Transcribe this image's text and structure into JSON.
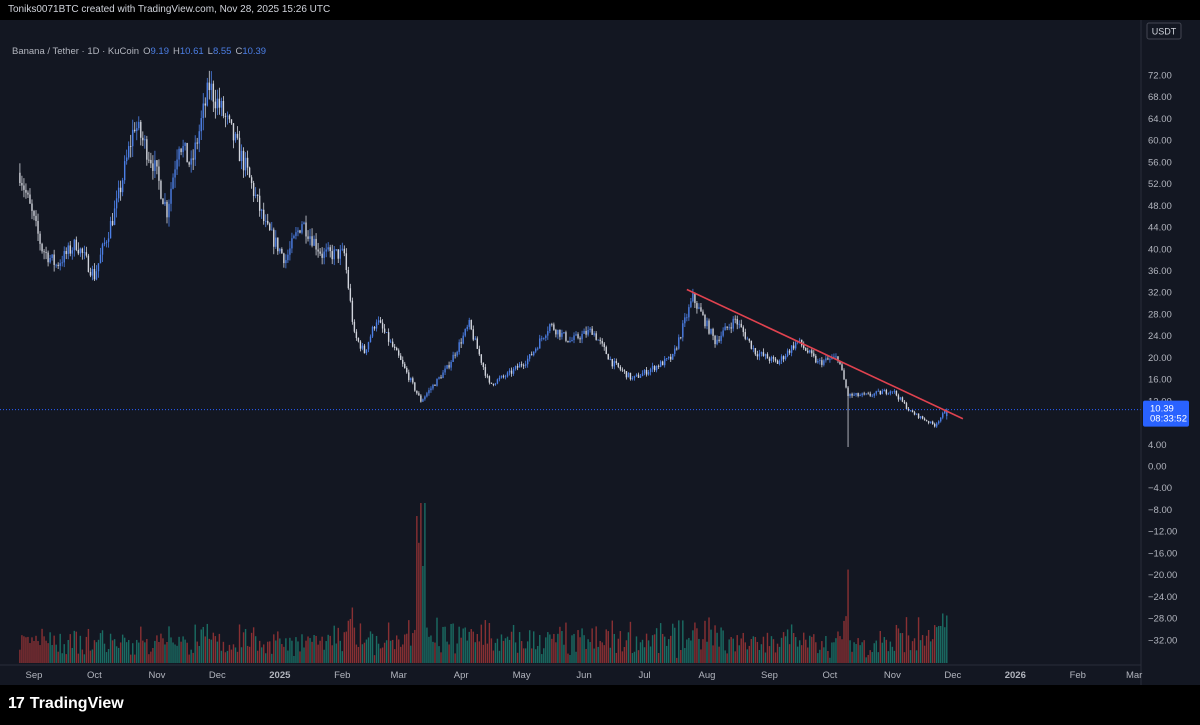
{
  "header": {
    "credit": "Toniks0071BTC created with TradingView.com, Nov 28, 2025 15:26 UTC"
  },
  "legend": {
    "symbol": "Banana / Tether · 1D · KuCoin",
    "open_label": "O",
    "open": "9.19",
    "high_label": "H",
    "high": "10.61",
    "low_label": "L",
    "low": "8.55",
    "close_label": "C",
    "close": "10.39"
  },
  "price_axis": {
    "currency": "USDT",
    "last_price": "10.39",
    "countdown": "08:33:52"
  },
  "brand": {
    "logo_text": "17",
    "name": "TradingView"
  },
  "colors": {
    "background": "#131722",
    "bull": "#4c7fe6",
    "bear": "#d1d4dc",
    "volume_bull": "#1e8a7a",
    "volume_bear": "#b03a3a",
    "trendline": "#e0424f",
    "last_price_label": "#2962ff"
  },
  "chart_data": {
    "type": "candlestick",
    "title": "Banana / Tether · 1D · KuCoin",
    "x_tick_labels": [
      "Sep",
      "Oct",
      "Nov",
      "Dec",
      "2025",
      "Feb",
      "Mar",
      "Apr",
      "May",
      "Jun",
      "Jul",
      "Aug",
      "Sep",
      "Oct",
      "Nov",
      "Dec",
      "2026",
      "Feb",
      "Mar"
    ],
    "y_tick_labels": [
      "72.00",
      "68.00",
      "64.00",
      "60.00",
      "56.00",
      "52.00",
      "48.00",
      "44.00",
      "40.00",
      "36.00",
      "32.00",
      "28.00",
      "24.00",
      "20.00",
      "16.00",
      "12.00",
      "4.00",
      "0.00",
      "−4.00",
      "−8.00",
      "−12.00",
      "−16.00",
      "−20.00",
      "−24.00",
      "−28.00",
      "−32.00"
    ],
    "y_ticks": [
      72,
      68,
      64,
      60,
      56,
      52,
      48,
      44,
      40,
      36,
      32,
      28,
      24,
      20,
      16,
      12,
      4,
      0,
      -4,
      -8,
      -12,
      -16,
      -20,
      -24,
      -28,
      -32
    ],
    "ylim": [
      -34,
      75
    ],
    "last_close": 10.39,
    "price_path": [
      {
        "date": "2024-08-25",
        "close": 54
      },
      {
        "date": "2024-09-05",
        "close": 40
      },
      {
        "date": "2024-09-12",
        "close": 37
      },
      {
        "date": "2024-09-22",
        "close": 41
      },
      {
        "date": "2024-10-01",
        "close": 35
      },
      {
        "date": "2024-10-12",
        "close": 48
      },
      {
        "date": "2024-10-21",
        "close": 63
      },
      {
        "date": "2024-10-30",
        "close": 56
      },
      {
        "date": "2024-11-06",
        "close": 47
      },
      {
        "date": "2024-11-12",
        "close": 60
      },
      {
        "date": "2024-11-18",
        "close": 55
      },
      {
        "date": "2024-11-27",
        "close": 70
      },
      {
        "date": "2024-12-05",
        "close": 64
      },
      {
        "date": "2024-12-15",
        "close": 55
      },
      {
        "date": "2024-12-25",
        "close": 44
      },
      {
        "date": "2025-01-04",
        "close": 38
      },
      {
        "date": "2025-01-12",
        "close": 45
      },
      {
        "date": "2025-01-22",
        "close": 39
      },
      {
        "date": "2025-02-02",
        "close": 39
      },
      {
        "date": "2025-02-07",
        "close": 24
      },
      {
        "date": "2025-02-12",
        "close": 21
      },
      {
        "date": "2025-02-18",
        "close": 27
      },
      {
        "date": "2025-03-01",
        "close": 20
      },
      {
        "date": "2025-03-12",
        "close": 12
      },
      {
        "date": "2025-03-25",
        "close": 18
      },
      {
        "date": "2025-04-05",
        "close": 26
      },
      {
        "date": "2025-04-15",
        "close": 15
      },
      {
        "date": "2025-04-25",
        "close": 17
      },
      {
        "date": "2025-05-05",
        "close": 20
      },
      {
        "date": "2025-05-15",
        "close": 26
      },
      {
        "date": "2025-05-25",
        "close": 23
      },
      {
        "date": "2025-06-05",
        "close": 25
      },
      {
        "date": "2025-06-15",
        "close": 19
      },
      {
        "date": "2025-06-25",
        "close": 16
      },
      {
        "date": "2025-07-05",
        "close": 18
      },
      {
        "date": "2025-07-15",
        "close": 20
      },
      {
        "date": "2025-07-25",
        "close": 31
      },
      {
        "date": "2025-08-05",
        "close": 23
      },
      {
        "date": "2025-08-15",
        "close": 27
      },
      {
        "date": "2025-08-25",
        "close": 21
      },
      {
        "date": "2025-09-05",
        "close": 19
      },
      {
        "date": "2025-09-15",
        "close": 23
      },
      {
        "date": "2025-09-25",
        "close": 19
      },
      {
        "date": "2025-10-05",
        "close": 20
      },
      {
        "date": "2025-10-10",
        "close": 13
      },
      {
        "date": "2025-10-20",
        "close": 13
      },
      {
        "date": "2025-11-01",
        "close": 14
      },
      {
        "date": "2025-11-10",
        "close": 10
      },
      {
        "date": "2025-11-22",
        "close": 7.5
      },
      {
        "date": "2025-11-28",
        "close": 10.39
      }
    ],
    "notable_wick_low": {
      "date": "2025-10-10",
      "low": 3.5
    },
    "trendline": [
      {
        "date": "2025-07-22",
        "price": 32.5
      },
      {
        "date": "2025-12-06",
        "price": 8.7
      }
    ]
  }
}
